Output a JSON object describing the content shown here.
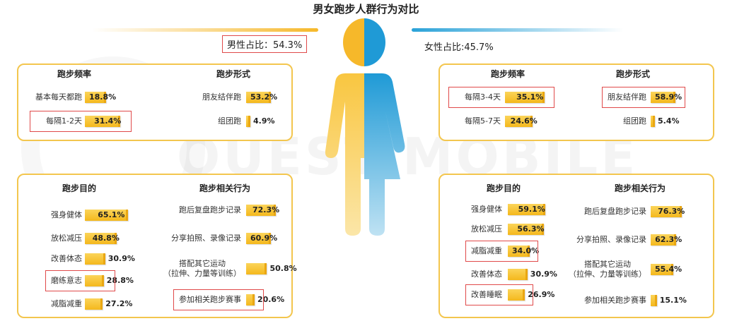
{
  "title": "男女跑步人群行为对比",
  "male_ratio": "男性占比：54.3%",
  "female_ratio": "女性占比:45.7%",
  "watermark": "QUEST MOBILE",
  "colors": {
    "bar": "#f4b81c",
    "male": "#f6b82a",
    "female": "#2aa2d8",
    "highlight": "#e04a4a",
    "panel_border": "#f3c64e"
  },
  "chart_data": [
    {
      "type": "bar",
      "group": "male",
      "title": "跑步频率",
      "categories": [
        "基本每天都跑",
        "每隔1-2天"
      ],
      "values": [
        18.8,
        31.4
      ],
      "value_labels": [
        "18.8%",
        "31.4%"
      ],
      "highlight": [
        "每隔1-2天"
      ]
    },
    {
      "type": "bar",
      "group": "male",
      "title": "跑步形式",
      "categories": [
        "朋友结伴跑",
        "组团跑"
      ],
      "values": [
        53.2,
        4.9
      ],
      "value_labels": [
        "53.2%",
        "4.9%"
      ],
      "highlight": []
    },
    {
      "type": "bar",
      "group": "female",
      "title": "跑步频率",
      "categories": [
        "每隔3-4天",
        "每隔5-7天"
      ],
      "values": [
        35.1,
        24.6
      ],
      "value_labels": [
        "35.1%",
        "24.6%"
      ],
      "highlight": [
        "每隔3-4天"
      ]
    },
    {
      "type": "bar",
      "group": "female",
      "title": "跑步形式",
      "categories": [
        "朋友结伴跑",
        "组团跑"
      ],
      "values": [
        58.9,
        5.4
      ],
      "value_labels": [
        "58.9%",
        "5.4%"
      ],
      "highlight": [
        "朋友结伴跑"
      ]
    },
    {
      "type": "bar",
      "group": "male",
      "title": "跑步目的",
      "categories": [
        "强身健体",
        "放松减压",
        "改善体态",
        "磨练意志",
        "减脂减重"
      ],
      "values": [
        65.1,
        48.8,
        30.9,
        28.8,
        27.2
      ],
      "value_labels": [
        "65.1%",
        "48.8%",
        "30.9%",
        "28.8%",
        "27.2%"
      ],
      "highlight": [
        "磨练意志"
      ]
    },
    {
      "type": "bar",
      "group": "male",
      "title": "跑步相关行为",
      "categories": [
        "跑后复盘跑步记录",
        "分享拍照、录像记录",
        "搭配其它运动|（拉伸、力量等训练）",
        "参加相关跑步赛事"
      ],
      "values": [
        72.3,
        60.9,
        50.8,
        20.6
      ],
      "value_labels": [
        "72.3%",
        "60.9%",
        "50.8%",
        "20.6%"
      ],
      "highlight": [
        "参加相关跑步赛事"
      ]
    },
    {
      "type": "bar",
      "group": "female",
      "title": "跑步目的",
      "categories": [
        "强身健体",
        "放松减压",
        "减脂减重",
        "改善体态",
        "改善睡眠"
      ],
      "values": [
        59.1,
        56.3,
        34.0,
        30.9,
        26.9
      ],
      "value_labels": [
        "59.1%",
        "56.3%",
        "34.0%",
        "30.9%",
        "26.9%"
      ],
      "highlight": [
        "减脂减重",
        "改善睡眠"
      ]
    },
    {
      "type": "bar",
      "group": "female",
      "title": "跑步相关行为",
      "categories": [
        "跑后复盘跑步记录",
        "分享拍照、录像记录",
        "搭配其它运动|（拉伸、力量等训练）",
        "参加相关跑步赛事"
      ],
      "values": [
        76.3,
        62.3,
        55.4,
        15.1
      ],
      "value_labels": [
        "76.3%",
        "62.3%",
        "55.4%",
        "15.1%"
      ],
      "highlight": []
    }
  ]
}
